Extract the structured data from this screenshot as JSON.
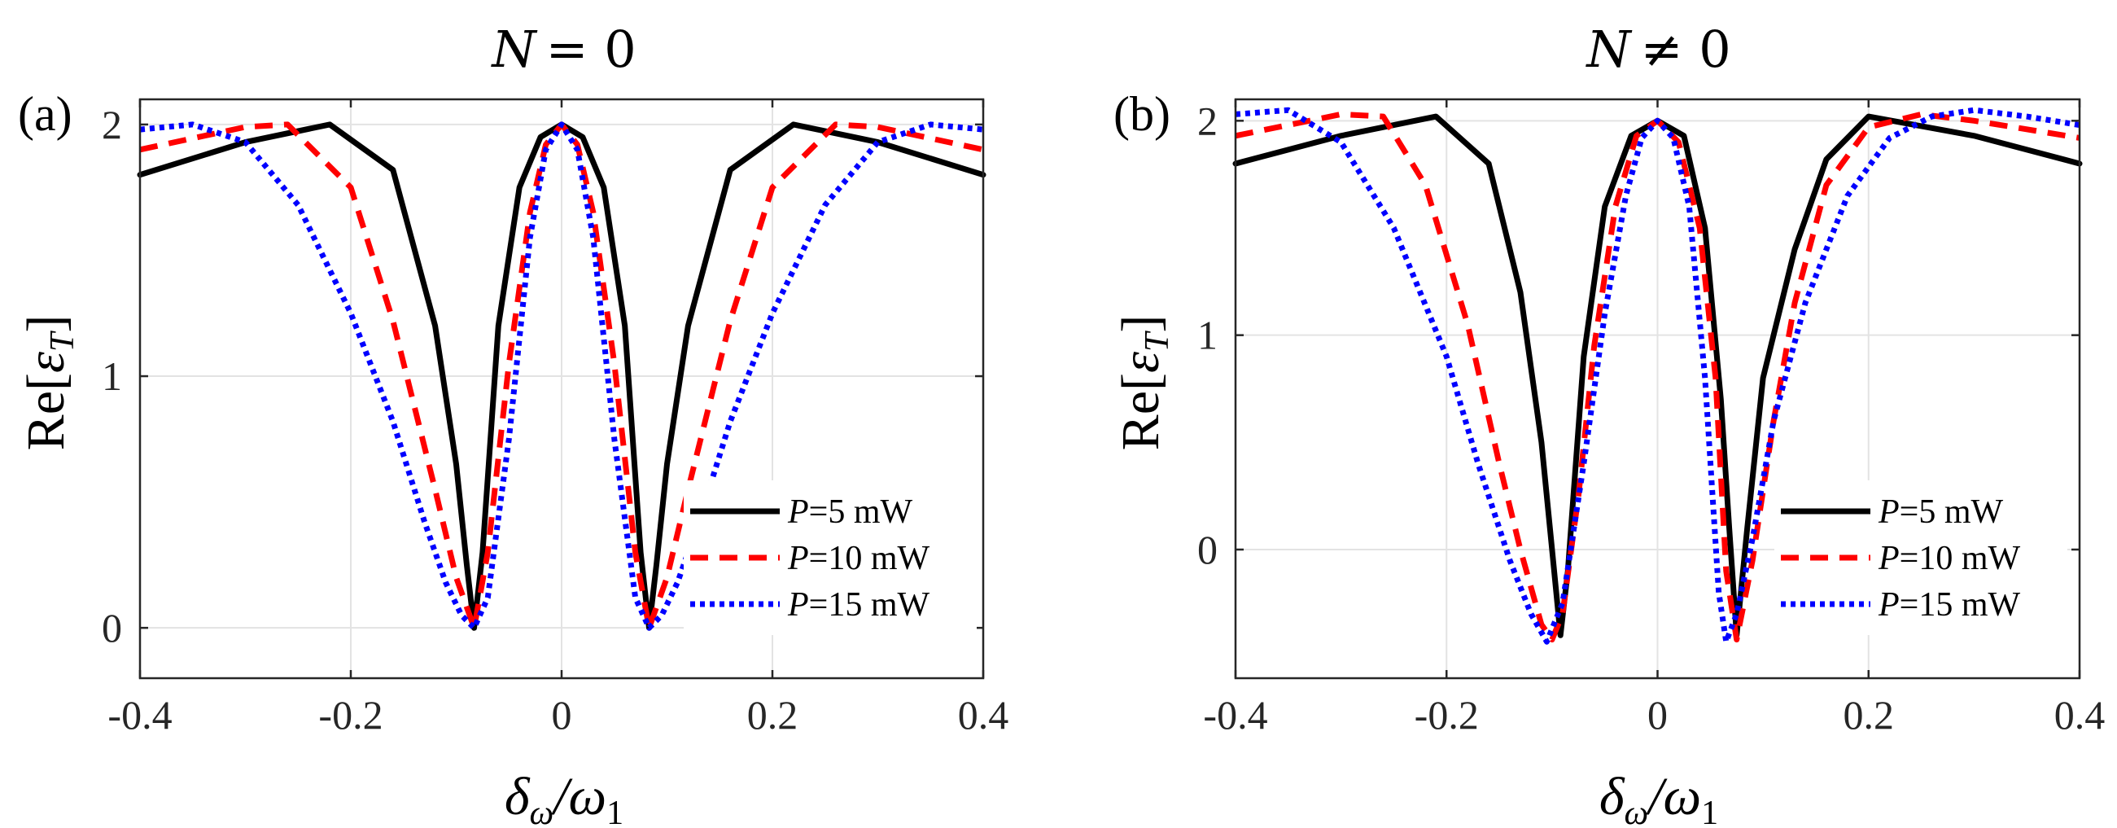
{
  "chart_data": [
    {
      "type": "line",
      "panel_label": "(a)",
      "title": "N = 0",
      "title_var": "N",
      "title_rel": "= 0",
      "xlabel": "δω/ω1",
      "xlabel_main": "δ",
      "xlabel_sub": "ω",
      "xlabel_den": "/ω",
      "xlabel_den_sub": "1",
      "ylabel": "Re[εT]",
      "ylabel_pre": "Re[",
      "ylabel_var": "ε",
      "ylabel_sub": "T",
      "ylabel_post": "]",
      "xlim": [
        -0.4,
        0.4
      ],
      "ylim": [
        -0.2,
        2.1
      ],
      "xticks": [
        -0.4,
        -0.2,
        0,
        0.2,
        0.4
      ],
      "xtick_labels": [
        "-0.4",
        "-0.2",
        "0",
        "0.2",
        "0.4"
      ],
      "yticks": [
        0,
        1,
        2
      ],
      "ytick_labels": [
        "0",
        "1",
        "2"
      ],
      "grid": true,
      "legend_position": "bottom-right",
      "series": [
        {
          "name": "P=5 mW",
          "var": "P",
          "rest": "=5 mW",
          "color": "#000000",
          "style": "solid",
          "x": [
            -0.4,
            -0.3,
            -0.22,
            -0.16,
            -0.12,
            -0.1,
            -0.09,
            -0.083,
            -0.075,
            -0.06,
            -0.04,
            -0.02,
            0,
            0.02,
            0.04,
            0.06,
            0.075,
            0.083,
            0.09,
            0.1,
            0.12,
            0.16,
            0.22,
            0.3,
            0.4
          ],
          "y": [
            1.8,
            1.93,
            2.0,
            1.82,
            1.2,
            0.65,
            0.25,
            0.0,
            0.3,
            1.2,
            1.75,
            1.95,
            2.0,
            1.95,
            1.75,
            1.2,
            0.3,
            0.0,
            0.25,
            0.65,
            1.2,
            1.82,
            2.0,
            1.93,
            1.8
          ]
        },
        {
          "name": "P=10 mW",
          "var": "P",
          "rest": "=10 mW",
          "color": "#ff0000",
          "style": "dashed",
          "x": [
            -0.4,
            -0.3,
            -0.26,
            -0.2,
            -0.16,
            -0.12,
            -0.1,
            -0.083,
            -0.07,
            -0.05,
            -0.03,
            -0.015,
            0,
            0.015,
            0.03,
            0.05,
            0.07,
            0.083,
            0.1,
            0.12,
            0.16,
            0.2,
            0.26,
            0.3,
            0.4
          ],
          "y": [
            1.9,
            1.99,
            2.0,
            1.75,
            1.22,
            0.55,
            0.2,
            0.0,
            0.3,
            1.05,
            1.65,
            1.92,
            2.0,
            1.92,
            1.65,
            1.05,
            0.3,
            0.0,
            0.2,
            0.55,
            1.22,
            1.75,
            2.0,
            1.99,
            1.9
          ]
        },
        {
          "name": "P=15 mW",
          "var": "P",
          "rest": "=15 mW",
          "color": "#0000ff",
          "style": "dotted",
          "x": [
            -0.4,
            -0.35,
            -0.3,
            -0.25,
            -0.2,
            -0.16,
            -0.13,
            -0.11,
            -0.095,
            -0.083,
            -0.07,
            -0.05,
            -0.03,
            -0.015,
            0,
            0.015,
            0.03,
            0.05,
            0.07,
            0.083,
            0.095,
            0.11,
            0.13,
            0.16,
            0.2,
            0.25,
            0.3,
            0.35,
            0.4
          ],
          "y": [
            1.98,
            2.0,
            1.93,
            1.68,
            1.25,
            0.82,
            0.42,
            0.18,
            0.05,
            0.0,
            0.12,
            0.75,
            1.55,
            1.9,
            2.0,
            1.9,
            1.55,
            0.75,
            0.12,
            0.0,
            0.05,
            0.18,
            0.42,
            0.82,
            1.25,
            1.68,
            1.93,
            2.0,
            1.98
          ]
        }
      ]
    },
    {
      "type": "line",
      "panel_label": "(b)",
      "title": "N ≠ 0",
      "title_var": "N",
      "title_rel": "≠ 0",
      "xlabel": "δω/ω1",
      "xlabel_main": "δ",
      "xlabel_sub": "ω",
      "xlabel_den": "/ω",
      "xlabel_den_sub": "1",
      "ylabel": "Re[εT]",
      "ylabel_pre": "Re[",
      "ylabel_var": "ε",
      "ylabel_sub": "T",
      "ylabel_post": "]",
      "xlim": [
        -0.4,
        0.4
      ],
      "ylim": [
        -0.6,
        2.1
      ],
      "xticks": [
        -0.4,
        -0.2,
        0,
        0.2,
        0.4
      ],
      "xtick_labels": [
        "-0.4",
        "-0.2",
        "0",
        "0.2",
        "0.4"
      ],
      "yticks": [
        0,
        1,
        2
      ],
      "ytick_labels": [
        "0",
        "1",
        "2"
      ],
      "grid": true,
      "legend_position": "bottom-right",
      "series": [
        {
          "name": "P=5 mW",
          "var": "P",
          "rest": "=5 mW",
          "color": "#000000",
          "style": "solid",
          "x": [
            -0.4,
            -0.3,
            -0.21,
            -0.16,
            -0.13,
            -0.11,
            -0.1,
            -0.092,
            -0.085,
            -0.07,
            -0.05,
            -0.025,
            0,
            0.025,
            0.045,
            0.06,
            0.068,
            0.075,
            0.085,
            0.1,
            0.13,
            0.16,
            0.2,
            0.3,
            0.4
          ],
          "y": [
            1.8,
            1.93,
            2.02,
            1.8,
            1.2,
            0.5,
            0.0,
            -0.4,
            -0.1,
            0.9,
            1.6,
            1.93,
            2.0,
            1.93,
            1.5,
            0.7,
            0.1,
            -0.4,
            0.1,
            0.8,
            1.4,
            1.82,
            2.02,
            1.93,
            1.8
          ]
        },
        {
          "name": "P=10 mW",
          "var": "P",
          "rest": "=10 mW",
          "color": "#ff0000",
          "style": "dashed",
          "x": [
            -0.4,
            -0.3,
            -0.26,
            -0.22,
            -0.18,
            -0.15,
            -0.13,
            -0.11,
            -0.1,
            -0.09,
            -0.075,
            -0.06,
            -0.04,
            -0.02,
            0,
            0.02,
            0.04,
            0.055,
            0.065,
            0.075,
            0.09,
            0.11,
            0.13,
            0.16,
            0.2,
            0.25,
            0.3,
            0.4
          ],
          "y": [
            1.93,
            2.03,
            2.02,
            1.7,
            1.05,
            0.4,
            0.0,
            -0.35,
            -0.42,
            -0.3,
            0.25,
            0.95,
            1.6,
            1.93,
            2.0,
            1.9,
            1.5,
            0.8,
            -0.1,
            -0.42,
            -0.05,
            0.6,
            1.15,
            1.7,
            1.97,
            2.03,
            2.0,
            1.92
          ]
        },
        {
          "name": "P=15 mW",
          "var": "P",
          "rest": "=15 mW",
          "color": "#0000ff",
          "style": "dotted",
          "x": [
            -0.4,
            -0.35,
            -0.3,
            -0.25,
            -0.2,
            -0.17,
            -0.14,
            -0.12,
            -0.105,
            -0.09,
            -0.07,
            -0.05,
            -0.03,
            -0.015,
            0,
            0.015,
            0.03,
            0.045,
            0.058,
            0.065,
            0.075,
            0.09,
            0.11,
            0.14,
            0.18,
            0.22,
            0.26,
            0.3,
            0.35,
            0.4
          ],
          "y": [
            2.03,
            2.05,
            1.9,
            1.5,
            0.9,
            0.4,
            -0.05,
            -0.3,
            -0.43,
            -0.25,
            0.4,
            1.1,
            1.65,
            1.92,
            2.0,
            1.92,
            1.6,
            0.8,
            -0.2,
            -0.43,
            -0.3,
            0.05,
            0.6,
            1.15,
            1.65,
            1.92,
            2.02,
            2.05,
            2.02,
            1.98
          ]
        }
      ]
    }
  ]
}
